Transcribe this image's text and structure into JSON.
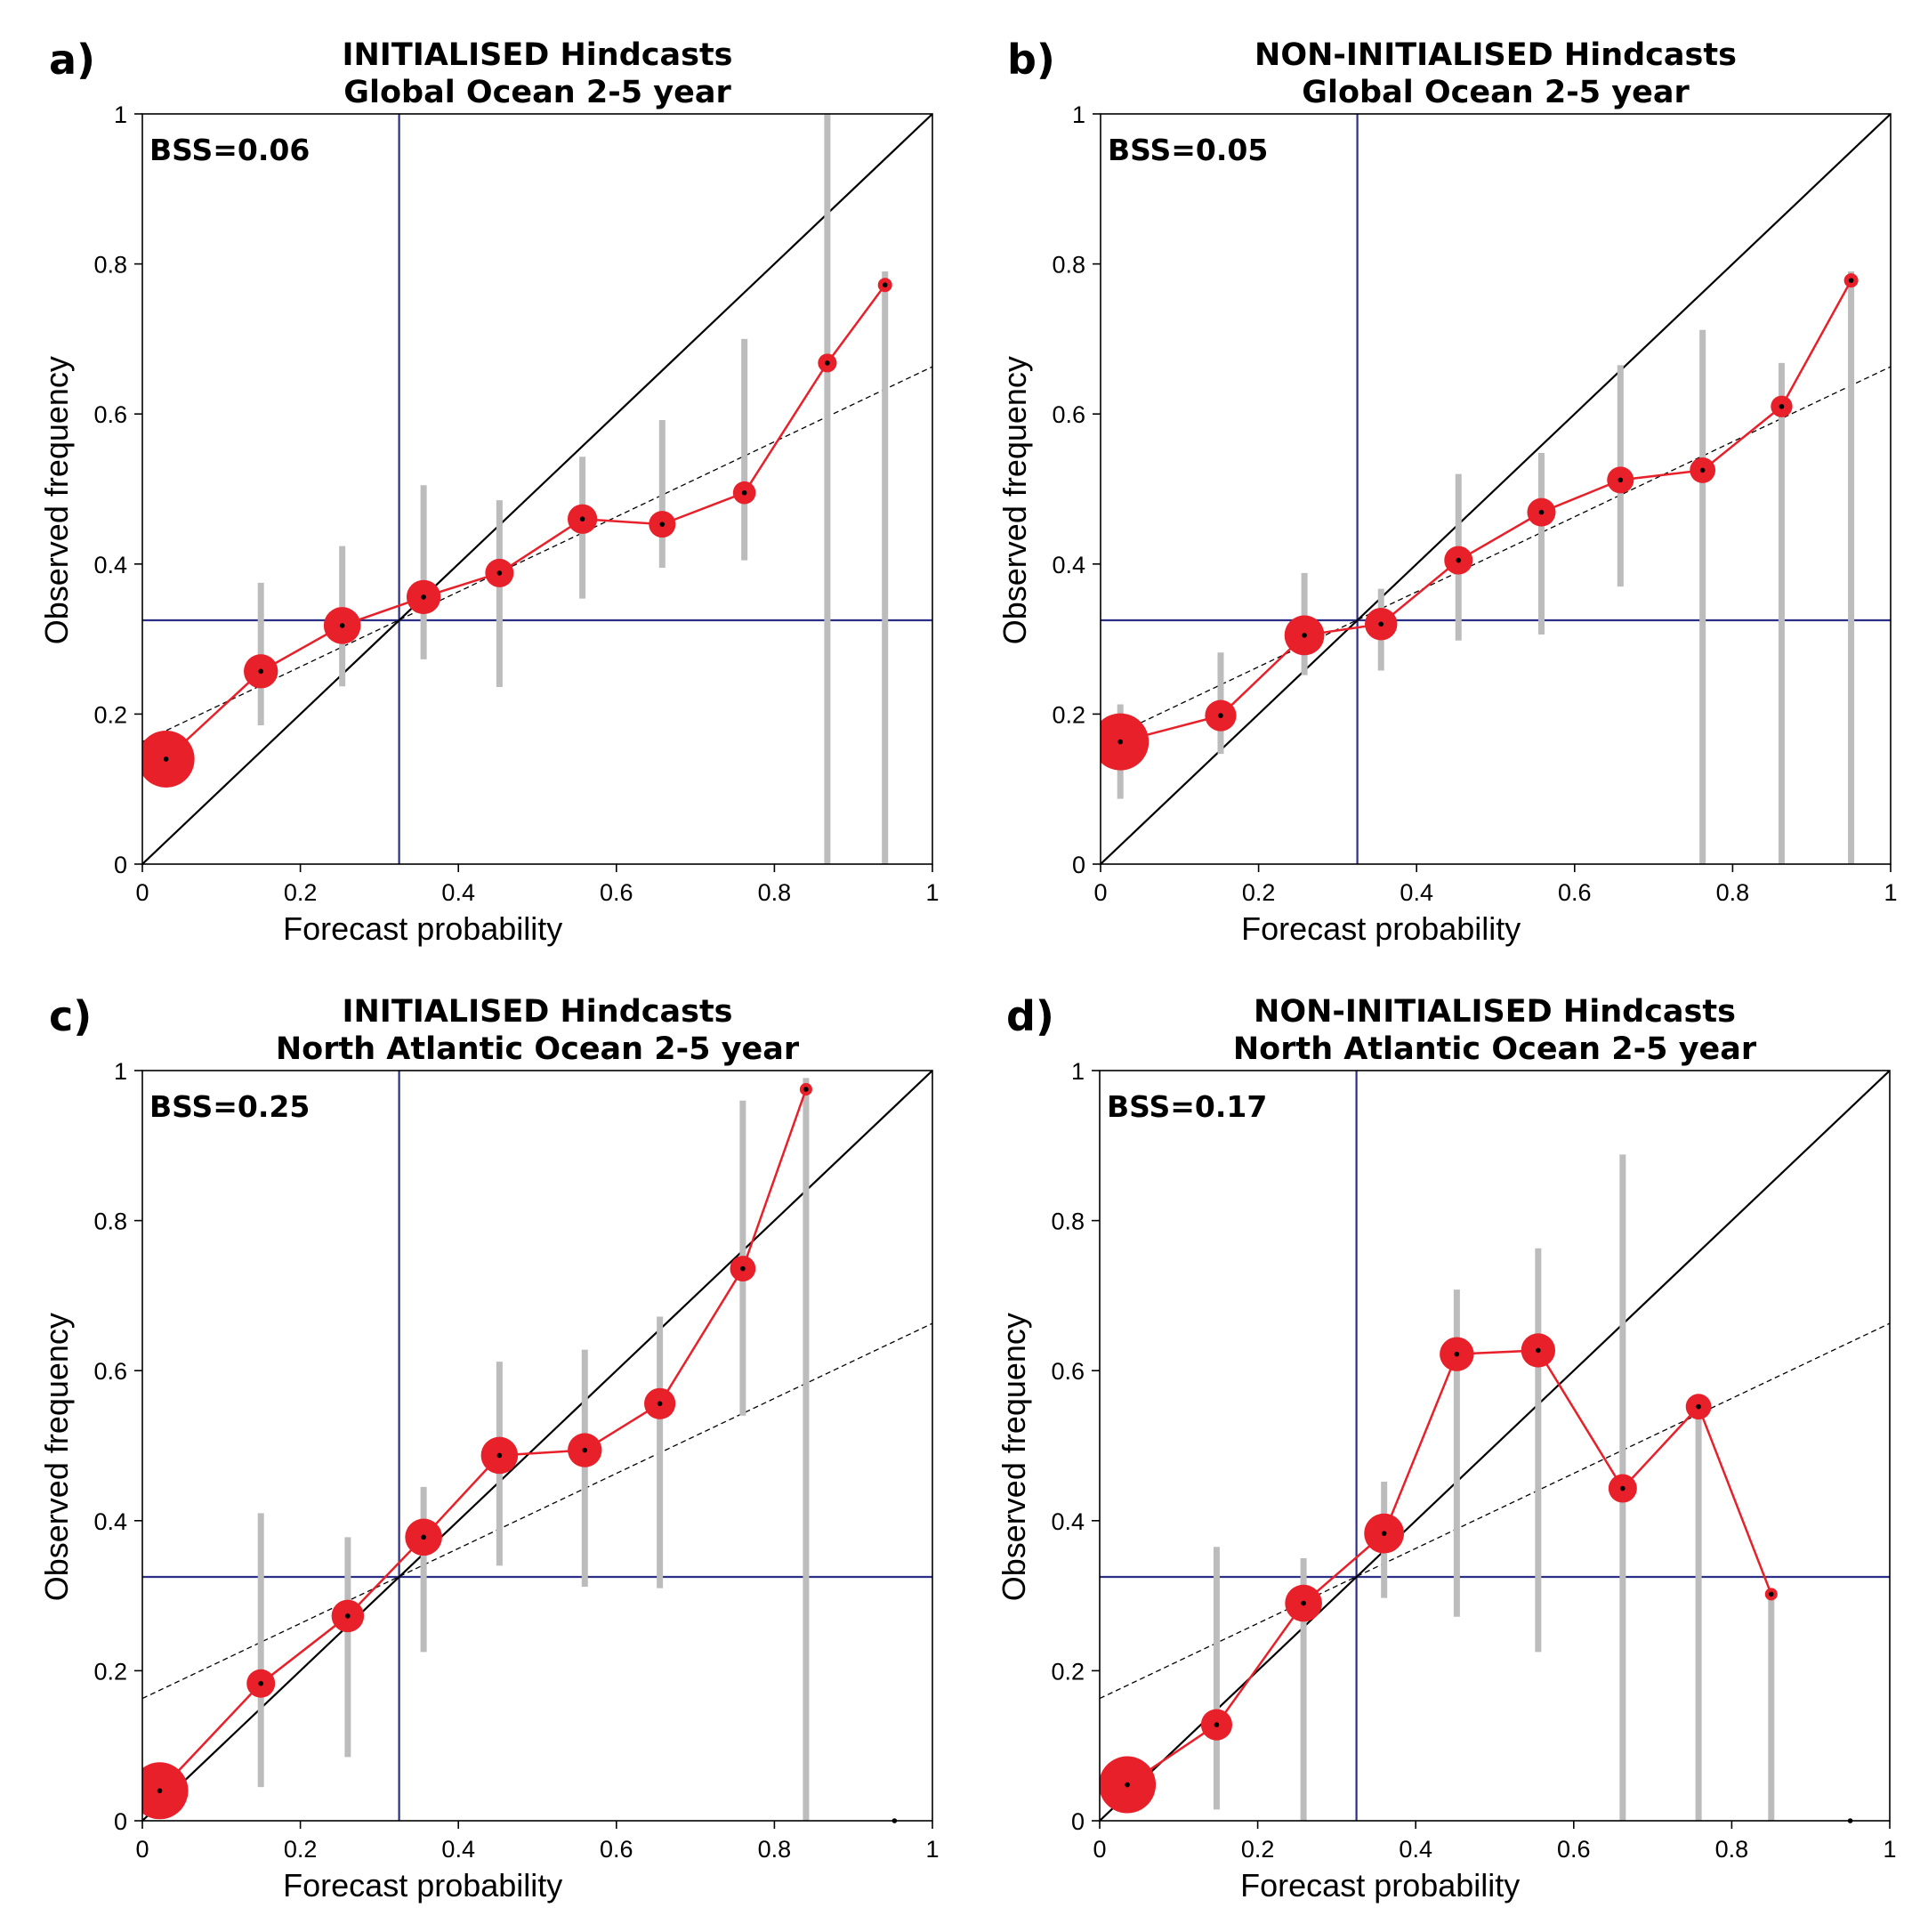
{
  "chart_data": [
    {
      "type": "scatter",
      "panel_label": "a)",
      "title": [
        "INITIALISED Hindcasts",
        "Global Ocean 2-5 year"
      ],
      "annotation": "BSS=0.06",
      "xlabel": "Forecast probability",
      "ylabel": "Observed frequency",
      "xlim": [
        0,
        1
      ],
      "ylim": [
        0,
        1
      ],
      "xticks": [
        "0",
        "0.2",
        "0.4",
        "0.6",
        "0.8",
        "1"
      ],
      "yticks": [
        "0",
        "0.2",
        "0.4",
        "0.6",
        "0.8",
        "1"
      ],
      "climatology": 0.325,
      "no_skill_line": {
        "intercept": 0.163,
        "slope": 0.5
      },
      "points": [
        {
          "x": 0.03,
          "y": 0.14,
          "size": 1.0,
          "err": [
            null,
            null
          ]
        },
        {
          "x": 0.15,
          "y": 0.257,
          "size": 0.6,
          "err": [
            0.185,
            0.375
          ]
        },
        {
          "x": 0.253,
          "y": 0.318,
          "size": 0.65,
          "err": [
            0.237,
            0.424
          ]
        },
        {
          "x": 0.356,
          "y": 0.356,
          "size": 0.6,
          "err": [
            0.273,
            0.505
          ]
        },
        {
          "x": 0.452,
          "y": 0.388,
          "size": 0.5,
          "err": [
            0.236,
            0.485
          ]
        },
        {
          "x": 0.557,
          "y": 0.46,
          "size": 0.52,
          "err": [
            0.354,
            0.543
          ]
        },
        {
          "x": 0.658,
          "y": 0.453,
          "size": 0.47,
          "err": [
            0.395,
            0.592
          ]
        },
        {
          "x": 0.762,
          "y": 0.495,
          "size": 0.4,
          "err": [
            0.405,
            0.7
          ]
        },
        {
          "x": 0.867,
          "y": 0.668,
          "size": 0.33,
          "err": [
            0.0,
            1.0
          ]
        },
        {
          "x": 0.94,
          "y": 0.772,
          "size": 0.25,
          "err": [
            0.0,
            0.79
          ]
        }
      ]
    },
    {
      "type": "scatter",
      "panel_label": "b)",
      "title": [
        "NON-INITIALISED Hindcasts",
        "Global Ocean 2-5 year"
      ],
      "annotation": "BSS=0.05",
      "xlabel": "Forecast probability",
      "ylabel": "Observed frequency",
      "xlim": [
        0,
        1
      ],
      "ylim": [
        0,
        1
      ],
      "xticks": [
        "0",
        "0.2",
        "0.4",
        "0.6",
        "0.8",
        "1"
      ],
      "yticks": [
        "0",
        "0.2",
        "0.4",
        "0.6",
        "0.8",
        "1"
      ],
      "climatology": 0.325,
      "no_skill_line": {
        "intercept": 0.163,
        "slope": 0.5
      },
      "points": [
        {
          "x": 0.025,
          "y": 0.163,
          "size": 1.0,
          "err": [
            0.087,
            0.213
          ]
        },
        {
          "x": 0.152,
          "y": 0.198,
          "size": 0.55,
          "err": [
            0.147,
            0.282
          ]
        },
        {
          "x": 0.258,
          "y": 0.305,
          "size": 0.7,
          "err": [
            0.252,
            0.388
          ]
        },
        {
          "x": 0.355,
          "y": 0.32,
          "size": 0.57,
          "err": [
            0.258,
            0.367
          ]
        },
        {
          "x": 0.453,
          "y": 0.405,
          "size": 0.5,
          "err": [
            0.298,
            0.52
          ]
        },
        {
          "x": 0.558,
          "y": 0.469,
          "size": 0.5,
          "err": [
            0.306,
            0.548
          ]
        },
        {
          "x": 0.658,
          "y": 0.512,
          "size": 0.47,
          "err": [
            0.37,
            0.665
          ]
        },
        {
          "x": 0.762,
          "y": 0.525,
          "size": 0.45,
          "err": [
            0.0,
            0.712
          ]
        },
        {
          "x": 0.862,
          "y": 0.61,
          "size": 0.38,
          "err": [
            0.0,
            0.668
          ]
        },
        {
          "x": 0.95,
          "y": 0.778,
          "size": 0.25,
          "err": [
            0.0,
            0.79
          ]
        }
      ]
    },
    {
      "type": "scatter",
      "panel_label": "c)",
      "title": [
        "INITIALISED Hindcasts",
        "North Atlantic Ocean 2-5 year"
      ],
      "annotation": "BSS=0.25",
      "xlabel": "Forecast   probability",
      "ylabel": "Observed frequency",
      "xlim": [
        0,
        1
      ],
      "ylim": [
        0,
        1
      ],
      "xticks": [
        "0",
        "0.2",
        "0.4",
        "0.6",
        "0.8",
        "1"
      ],
      "yticks": [
        "0",
        "0.2",
        "0.4",
        "0.6",
        "0.8",
        "1"
      ],
      "climatology": 0.325,
      "no_skill_line": {
        "intercept": 0.163,
        "slope": 0.5
      },
      "points": [
        {
          "x": 0.022,
          "y": 0.04,
          "size": 1.0,
          "err": [
            null,
            null
          ]
        },
        {
          "x": 0.15,
          "y": 0.183,
          "size": 0.5,
          "err": [
            0.045,
            0.41
          ]
        },
        {
          "x": 0.26,
          "y": 0.273,
          "size": 0.57,
          "err": [
            0.085,
            0.378
          ]
        },
        {
          "x": 0.356,
          "y": 0.378,
          "size": 0.65,
          "err": [
            0.225,
            0.445
          ]
        },
        {
          "x": 0.452,
          "y": 0.487,
          "size": 0.65,
          "err": [
            0.34,
            0.612
          ]
        },
        {
          "x": 0.56,
          "y": 0.494,
          "size": 0.6,
          "err": [
            0.312,
            0.628
          ]
        },
        {
          "x": 0.655,
          "y": 0.556,
          "size": 0.55,
          "err": [
            0.31,
            0.672
          ]
        },
        {
          "x": 0.76,
          "y": 0.736,
          "size": 0.45,
          "err": [
            0.54,
            0.96
          ]
        },
        {
          "x": 0.84,
          "y": 0.975,
          "size": 0.22,
          "err": [
            0.0,
            0.99
          ]
        },
        {
          "x": 0.952,
          "y": 0.0,
          "size": 0.0,
          "err": [
            null,
            null
          ]
        }
      ]
    },
    {
      "type": "scatter",
      "panel_label": "d)",
      "title": [
        "NON-INITIALISED Hindcasts",
        "North Atlantic Ocean 2-5 year"
      ],
      "annotation": "BSS=0.17",
      "xlabel": "Forecast probability",
      "ylabel": "Observed frequency",
      "xlim": [
        0,
        1
      ],
      "ylim": [
        0,
        1
      ],
      "xticks": [
        "0",
        "0.2",
        "0.4",
        "0.6",
        "0.8",
        "1"
      ],
      "yticks": [
        "0",
        "0.2",
        "0.4",
        "0.6",
        "0.8",
        "1"
      ],
      "climatology": 0.325,
      "no_skill_line": {
        "intercept": 0.163,
        "slope": 0.5
      },
      "points": [
        {
          "x": 0.035,
          "y": 0.048,
          "size": 1.0,
          "err": [
            null,
            null
          ]
        },
        {
          "x": 0.148,
          "y": 0.128,
          "size": 0.55,
          "err": [
            0.015,
            0.365
          ]
        },
        {
          "x": 0.258,
          "y": 0.29,
          "size": 0.65,
          "err": [
            0.0,
            0.35
          ]
        },
        {
          "x": 0.36,
          "y": 0.383,
          "size": 0.7,
          "err": [
            0.297,
            0.452
          ]
        },
        {
          "x": 0.452,
          "y": 0.622,
          "size": 0.6,
          "err": [
            0.272,
            0.708
          ]
        },
        {
          "x": 0.555,
          "y": 0.627,
          "size": 0.6,
          "err": [
            0.225,
            0.763
          ]
        },
        {
          "x": 0.662,
          "y": 0.443,
          "size": 0.5,
          "err": [
            0.0,
            0.888
          ]
        },
        {
          "x": 0.758,
          "y": 0.552,
          "size": 0.45,
          "err": [
            0.0,
            0.552
          ]
        },
        {
          "x": 0.85,
          "y": 0.302,
          "size": 0.22,
          "err": [
            0.0,
            0.305
          ]
        },
        {
          "x": 0.95,
          "y": 0.0,
          "size": 0.0,
          "err": [
            null,
            null
          ]
        }
      ]
    }
  ],
  "colors": {
    "marker": "#e8202a",
    "connector": "#e8202a",
    "errorbar": "#bcbcbc",
    "climatology": "#2b2f86",
    "diagonal": "#000000",
    "no_skill": "#000000"
  }
}
